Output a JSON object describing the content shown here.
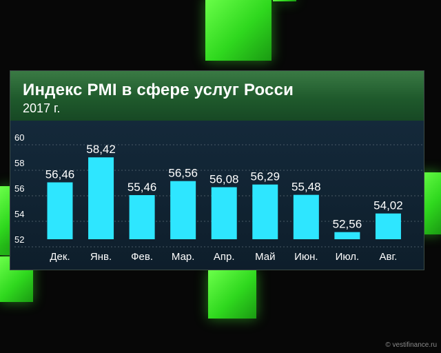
{
  "header": {
    "title": "Индекс PMI в сфере услуг Росси",
    "subtitle": "2017 г."
  },
  "watermark": "© vestifinance.ru",
  "colors": {
    "bar": "#2ee6ff",
    "grid": "#4a5a66",
    "label": "#ffffff",
    "header": "#2a6a36",
    "blocks": "#3cff2a"
  },
  "chart_data": {
    "type": "bar",
    "title": "Индекс PMI в сфере услуг Росси",
    "subtitle": "2017 г.",
    "categories": [
      "Дек.",
      "Янв.",
      "Фев.",
      "Мар.",
      "Апр.",
      "Май",
      "Июн.",
      "Июл.",
      "Авг."
    ],
    "values": [
      56.46,
      58.42,
      55.46,
      56.56,
      56.08,
      56.29,
      55.48,
      52.56,
      54.02
    ],
    "value_labels": [
      "56,46",
      "58,42",
      "55,46",
      "56,56",
      "56,08",
      "56,29",
      "55,48",
      "52,56",
      "54,02"
    ],
    "yticks": [
      52,
      54,
      56,
      58,
      60
    ],
    "ylim": [
      52,
      60
    ],
    "grid": true,
    "xlabel": "",
    "ylabel": ""
  }
}
